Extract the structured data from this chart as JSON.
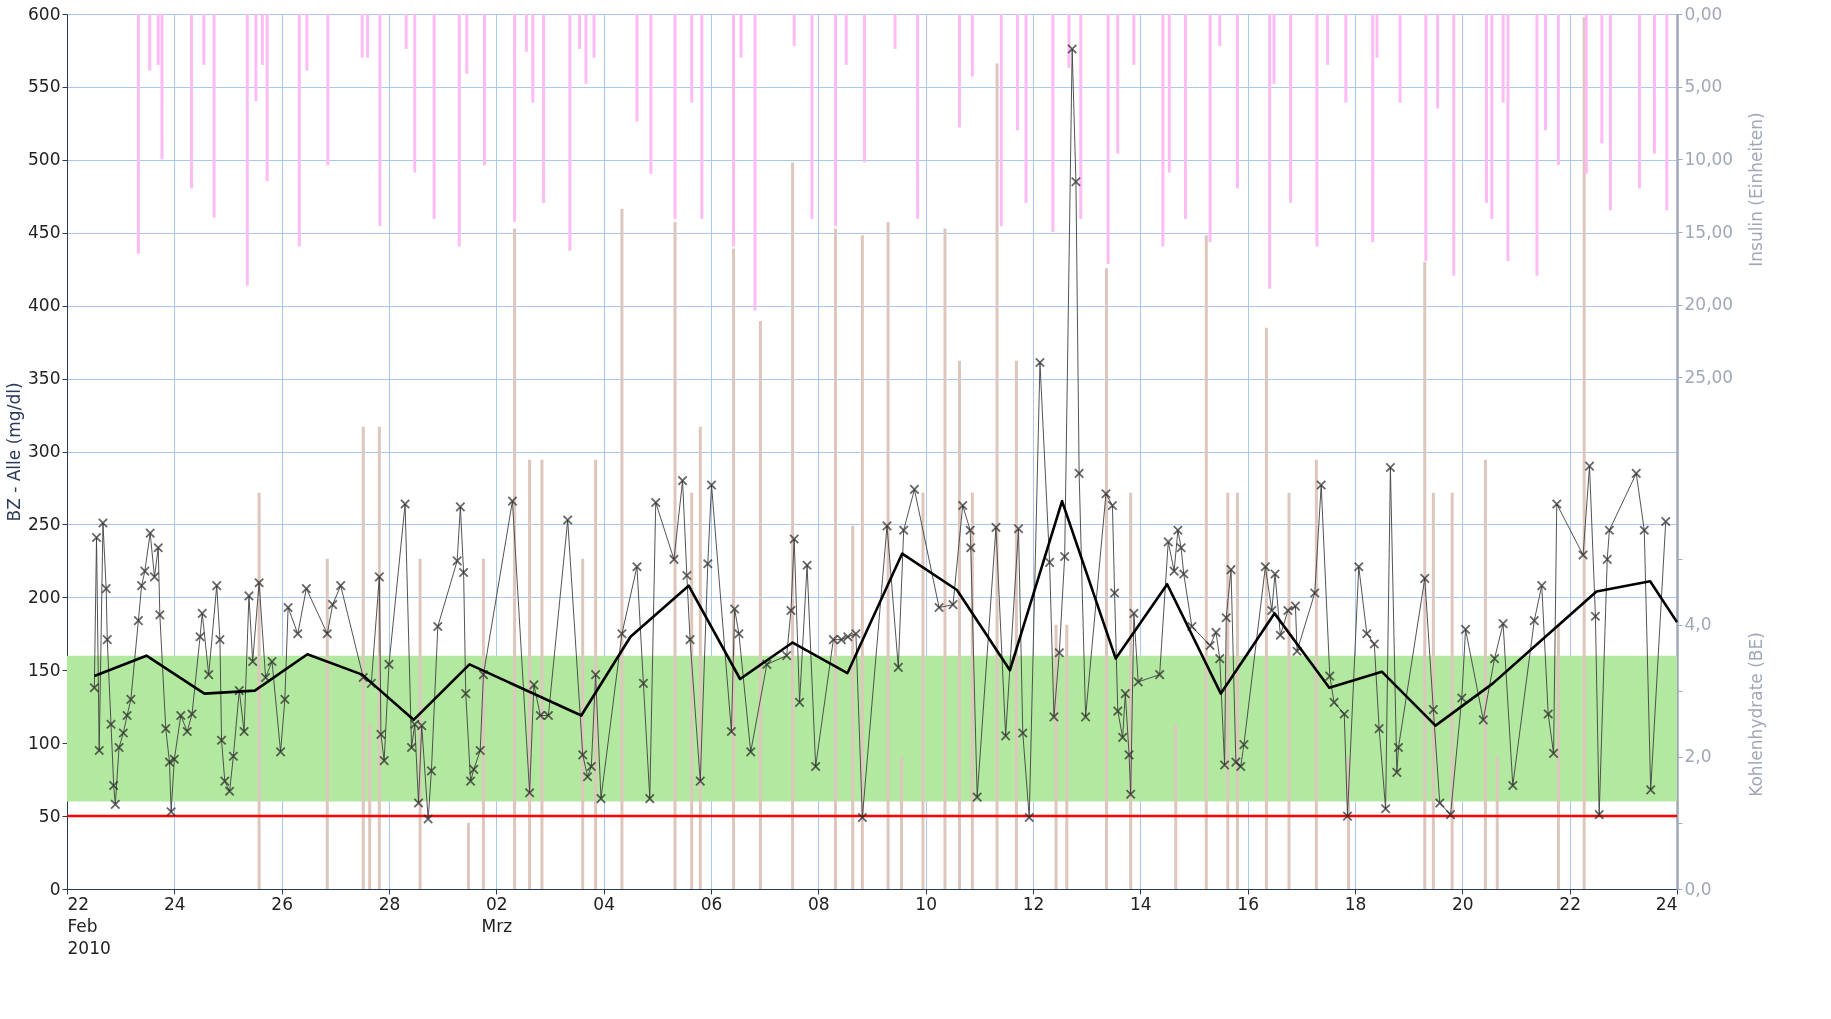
{
  "chart_data": {
    "type": "line",
    "ylabel": "BZ - Alle (mg/dl)",
    "y2label": "Insulin (Einheiten)",
    "y3label": "Kohlenhydrate (BE)",
    "xlim": [
      "2010-02-22",
      "2010-03-24"
    ],
    "xticks": [
      {
        "value": "2010-02-22",
        "label": "22\nFeb\n2010"
      },
      {
        "value": "2010-02-24",
        "label": "24"
      },
      {
        "value": "2010-02-26",
        "label": "26"
      },
      {
        "value": "2010-02-28",
        "label": "28"
      },
      {
        "value": "2010-03-02",
        "label": "02\nMrz"
      },
      {
        "value": "2010-03-04",
        "label": "04"
      },
      {
        "value": "2010-03-06",
        "label": "06"
      },
      {
        "value": "2010-03-08",
        "label": "08"
      },
      {
        "value": "2010-03-10",
        "label": "10"
      },
      {
        "value": "2010-03-12",
        "label": "12"
      },
      {
        "value": "2010-03-14",
        "label": "14"
      },
      {
        "value": "2010-03-16",
        "label": "16"
      },
      {
        "value": "2010-03-18",
        "label": "18"
      },
      {
        "value": "2010-03-20",
        "label": "20"
      },
      {
        "value": "2010-03-22",
        "label": "22"
      },
      {
        "value": "2010-03-24",
        "label": "24"
      }
    ],
    "ylim": [
      0,
      600
    ],
    "yticks": [
      0,
      50,
      100,
      150,
      200,
      250,
      300,
      350,
      400,
      450,
      500,
      550,
      600
    ],
    "y2lim": [
      60.2,
      0
    ],
    "y2ticks": [
      {
        "value": 0,
        "label": "0,00"
      },
      {
        "value": 5,
        "label": "5,00"
      },
      {
        "value": 10,
        "label": "10,00"
      },
      {
        "value": 15,
        "label": "15,00"
      },
      {
        "value": 20,
        "label": "20,00"
      },
      {
        "value": 25,
        "label": "25,00"
      }
    ],
    "y3lim": [
      0,
      13.25
    ],
    "y3ticks": [
      {
        "value": 0,
        "label": "0,0"
      },
      {
        "value": 1,
        "label": null
      },
      {
        "value": 2,
        "label": "2,0"
      },
      {
        "value": 3,
        "label": null
      },
      {
        "value": 4,
        "label": "4,0"
      },
      {
        "value": 5,
        "label": null
      }
    ],
    "grid": true,
    "bands": [
      {
        "axis": "y",
        "from": 60,
        "to": 160,
        "color": "#b3e8a0"
      }
    ],
    "ref_lines": [
      {
        "axis": "y",
        "value": 50,
        "color": "#ff0000",
        "line_style": "solid"
      }
    ],
    "series": [
      {
        "type": "bar",
        "axis": "y3",
        "color": "#ddc6bc",
        "x": [
          "2010-02-25T13:55",
          "2010-02-26T20:24",
          "2010-02-27T12:29",
          "2010-02-27T15:22",
          "2010-02-27T19:41",
          "2010-02-28T13:55",
          "2010-03-01T11:31",
          "2010-03-01T18:14",
          "2010-03-02T08:10",
          "2010-03-02T14:53",
          "2010-03-02T20:24",
          "2010-03-03T14:38",
          "2010-03-03T20:24",
          "2010-03-04T08:10",
          "2010-03-05T07:55",
          "2010-03-05T15:22",
          "2010-03-05T19:12",
          "2010-03-06T10:05",
          "2010-03-06T22:05",
          "2010-03-07T12:29",
          "2010-03-08T07:41",
          "2010-03-08T15:22",
          "2010-03-08T19:41",
          "2010-03-09T07:12",
          "2010-03-09T13:12",
          "2010-03-09T22:48",
          "2010-03-10T08:38",
          "2010-03-10T15:07",
          "2010-03-10T20:53",
          "2010-03-11T07:55",
          "2010-03-11T16:34",
          "2010-03-12T10:19",
          "2010-03-12T15:07",
          "2010-03-13T08:53",
          "2010-03-13T19:41",
          "2010-03-14T15:50",
          "2010-03-15T05:30",
          "2010-03-15T15:07",
          "2010-03-15T19:26",
          "2010-03-16T08:24",
          "2010-03-16T18:29",
          "2010-03-17T06:43",
          "2010-03-17T21:07",
          "2010-03-19T07:12",
          "2010-03-19T11:02",
          "2010-03-19T19:26",
          "2010-03-20T10:19",
          "2010-03-20T15:36",
          "2010-03-21T18:58",
          "2010-03-22T06:29"
        ],
        "values": [
          6.0,
          5.0,
          7.0,
          2.5,
          7.0,
          5.0,
          1.0,
          5.0,
          10.0,
          6.5,
          6.5,
          5.0,
          6.5,
          10.3,
          10.1,
          6.0,
          7.0,
          9.7,
          8.6,
          11.0,
          10.0,
          5.5,
          9.9,
          10.1,
          2.0,
          6.0,
          10.0,
          8.0,
          6.0,
          12.5,
          8.0,
          4.0,
          4.0,
          9.4,
          6.0,
          2.5,
          9.9,
          6.0,
          6.0,
          8.5,
          6.0,
          6.5,
          2.0,
          9.5,
          6.0,
          6.0,
          6.5,
          2.0,
          4.0,
          13.2
        ]
      },
      {
        "type": "bar",
        "axis": "y2",
        "color": "#ffbcf4",
        "x": [
          "2010-02-23T07:55",
          "2010-02-23T13:00",
          "2010-02-23T16:48",
          "2010-02-23T18:29",
          "2010-02-24T07:41",
          "2010-02-24T13:12",
          "2010-02-24T17:46",
          "2010-02-25T08:38",
          "2010-02-25T12:29",
          "2010-02-25T15:22",
          "2010-02-25T17:31",
          "2010-02-26T07:55",
          "2010-02-26T11:17",
          "2010-02-26T20:38",
          "2010-02-27T12:00",
          "2010-02-27T14:24",
          "2010-02-27T19:55",
          "2010-02-28T07:41",
          "2010-02-28T11:31",
          "2010-02-28T20:10",
          "2010-03-01T07:26",
          "2010-03-01T10:48",
          "2010-03-01T18:43",
          "2010-03-02T08:10",
          "2010-03-02T13:26",
          "2010-03-02T16:19",
          "2010-03-02T21:07",
          "2010-03-03T08:53",
          "2010-03-03T13:12",
          "2010-03-03T16:05",
          "2010-03-03T19:41",
          "2010-03-04T14:53",
          "2010-03-04T21:07",
          "2010-03-05T07:55",
          "2010-03-05T15:22",
          "2010-03-05T19:55",
          "2010-03-06T10:05",
          "2010-03-06T13:26",
          "2010-03-06T19:41",
          "2010-03-07T13:12",
          "2010-03-07T21:07",
          "2010-03-08T07:41",
          "2010-03-08T12:29",
          "2010-03-08T20:38",
          "2010-03-09T10:19",
          "2010-03-09T20:24",
          "2010-03-10T15:07",
          "2010-03-10T20:53",
          "2010-03-11T09:50",
          "2010-03-11T17:02",
          "2010-03-11T20:53",
          "2010-03-12T08:53",
          "2010-03-12T16:05",
          "2010-03-12T21:22",
          "2010-03-13T09:36",
          "2010-03-13T13:55",
          "2010-03-13T21:07",
          "2010-03-14T10:05",
          "2010-03-14T12:58",
          "2010-03-14T20:10",
          "2010-03-15T07:12",
          "2010-03-15T11:31",
          "2010-03-15T19:26",
          "2010-03-16T09:50",
          "2010-03-16T11:46",
          "2010-03-16T19:12",
          "2010-03-17T06:58",
          "2010-03-17T11:46",
          "2010-03-17T19:55",
          "2010-03-18T07:55",
          "2010-03-18T09:50",
          "2010-03-18T20:10",
          "2010-03-19T07:41",
          "2010-03-19T12:58",
          "2010-03-19T20:10",
          "2010-03-20T10:48",
          "2010-03-20T13:12",
          "2010-03-20T18:14",
          "2010-03-20T20:24",
          "2010-03-21T09:22",
          "2010-03-21T13:12",
          "2010-03-21T18:58",
          "2010-03-22T07:26",
          "2010-03-22T14:24",
          "2010-03-22T18:14",
          "2010-03-23T07:12",
          "2010-03-23T13:55",
          "2010-03-23T19:26"
        ],
        "values": [
          16.5,
          3.9,
          3.5,
          10,
          12,
          3.5,
          14,
          18.7,
          6,
          3.5,
          11.5,
          16,
          3.9,
          10.4,
          3,
          3,
          14.6,
          2.4,
          10.9,
          14.1,
          16,
          4.1,
          10.4,
          14.3,
          2.6,
          6.1,
          13,
          16.3,
          2.4,
          4.8,
          3,
          7.4,
          11,
          14.1,
          6.1,
          14.1,
          16,
          3,
          20.4,
          2.2,
          14.1,
          14.6,
          3.5,
          10.2,
          2.4,
          14.1,
          7.8,
          4.3,
          14.6,
          8,
          13,
          15,
          3.7,
          14.1,
          17.2,
          9.6,
          3.5,
          16,
          10.9,
          14.1,
          15.7,
          2.2,
          12,
          18.9,
          4.8,
          13,
          16,
          3.5,
          6.1,
          15.7,
          3,
          6.1,
          17,
          6.5,
          18,
          13,
          14.1,
          6.1,
          17,
          18,
          8,
          10.4,
          11,
          8.9,
          13.5,
          12,
          9.6,
          13.5
        ]
      },
      {
        "color": "#404040",
        "marker": "cross",
        "line_style": "solid",
        "x": [
          "2010-02-22T12:14",
          "2010-02-22T13:12",
          "2010-02-22T14:24",
          "2010-02-22T16:05",
          "2010-02-22T17:31",
          "2010-02-22T18:00",
          "2010-02-22T19:41",
          "2010-02-22T20:53",
          "2010-02-22T21:36",
          "2010-02-22T23:17",
          "2010-02-23T01:12",
          "2010-02-23T02:53",
          "2010-02-23T04:34",
          "2010-02-23T07:55",
          "2010-02-23T09:22",
          "2010-02-23T10:48",
          "2010-02-23T13:12",
          "2010-02-23T15:07",
          "2010-02-23T16:48",
          "2010-02-23T17:31",
          "2010-02-23T20:10",
          "2010-02-23T21:50",
          "2010-02-23T22:34",
          "2010-02-24T00:00",
          "2010-02-24T02:53",
          "2010-02-24T05:46",
          "2010-02-24T07:55",
          "2010-02-24T11:31",
          "2010-02-24T12:29",
          "2010-02-24T15:22",
          "2010-02-24T18:58",
          "2010-02-24T20:24",
          "2010-02-24T21:07",
          "2010-02-24T22:34",
          "2010-02-25T00:43",
          "2010-02-25T02:24",
          "2010-02-25T05:02",
          "2010-02-25T07:12",
          "2010-02-25T09:22",
          "2010-02-25T11:02",
          "2010-02-25T13:55",
          "2010-02-25T16:48",
          "2010-02-25T19:41",
          "2010-02-25T23:31",
          "2010-02-26T01:26",
          "2010-02-26T02:53",
          "2010-02-26T07:12",
          "2010-02-26T11:02",
          "2010-02-26T20:24",
          "2010-02-26T22:48",
          "2010-02-27T02:24",
          "2010-02-27T12:29",
          "2010-02-27T16:05",
          "2010-02-27T19:41",
          "2010-02-27T20:24",
          "2010-02-27T21:50",
          "2010-02-28T00:00",
          "2010-02-28T07:12",
          "2010-02-28T10:05",
          "2010-02-28T11:31",
          "2010-02-28T13:12",
          "2010-02-28T14:38",
          "2010-02-28T17:31",
          "2010-02-28T18:58",
          "2010-02-28T21:50",
          "2010-03-01T06:29",
          "2010-03-01T07:55",
          "2010-03-01T09:22",
          "2010-03-01T10:19",
          "2010-03-01T12:29",
          "2010-03-01T13:55",
          "2010-03-01T16:48",
          "2010-03-01T18:14",
          "2010-03-02T07:12",
          "2010-03-02T14:53",
          "2010-03-02T16:48",
          "2010-03-02T19:41",
          "2010-03-02T23:17",
          "2010-03-03T07:55",
          "2010-03-03T14:38",
          "2010-03-03T16:48",
          "2010-03-03T18:29",
          "2010-03-03T20:24",
          "2010-03-03T22:48",
          "2010-03-04T08:10",
          "2010-03-04T14:53",
          "2010-03-04T17:46",
          "2010-03-04T20:38",
          "2010-03-04T23:17",
          "2010-03-05T07:26",
          "2010-03-05T11:17",
          "2010-03-05T13:12",
          "2010-03-05T14:38",
          "2010-03-05T19:12",
          "2010-03-05T22:34",
          "2010-03-06T00:14",
          "2010-03-06T09:07",
          "2010-03-06T10:34",
          "2010-03-06T12:29",
          "2010-03-06T17:46",
          "2010-03-07T00:58",
          "2010-03-07T09:50",
          "2010-03-07T11:46",
          "2010-03-07T13:12",
          "2010-03-07T15:36",
          "2010-03-07T18:58",
          "2010-03-07T22:48",
          "2010-03-08T06:43",
          "2010-03-08T10:19",
          "2010-03-08T13:12",
          "2010-03-08T16:48",
          "2010-03-08T19:41",
          "2010-03-09T06:43",
          "2010-03-09T11:46",
          "2010-03-09T14:10",
          "2010-03-09T18:58",
          "2010-03-10T06:00",
          "2010-03-10T12:14",
          "2010-03-10T16:34",
          "2010-03-10T19:55",
          "2010-03-10T20:10",
          "2010-03-10T23:02",
          "2010-03-11T07:26",
          "2010-03-11T11:46",
          "2010-03-11T17:31",
          "2010-03-11T19:26",
          "2010-03-11T22:19",
          "2010-03-12T03:07",
          "2010-03-12T07:26",
          "2010-03-12T09:22",
          "2010-03-12T11:46",
          "2010-03-12T14:10",
          "2010-03-12T17:31",
          "2010-03-12T19:12",
          "2010-03-12T20:38",
          "2010-03-12T23:31",
          "2010-03-13T08:38",
          "2010-03-13T11:31",
          "2010-03-13T12:29",
          "2010-03-13T13:55",
          "2010-03-13T16:05",
          "2010-03-13T17:17",
          "2010-03-13T18:58",
          "2010-03-13T19:41",
          "2010-03-13T21:07",
          "2010-03-13T23:02",
          "2010-03-14T08:38",
          "2010-03-14T12:29",
          "2010-03-14T15:07",
          "2010-03-14T16:48",
          "2010-03-14T18:14",
          "2010-03-14T19:26",
          "2010-03-14T23:02",
          "2010-03-15T07:12",
          "2010-03-15T09:50",
          "2010-03-15T11:31",
          "2010-03-15T13:41",
          "2010-03-15T14:24",
          "2010-03-15T16:34",
          "2010-03-15T18:43",
          "2010-03-15T20:53",
          "2010-03-15T22:19",
          "2010-03-16T07:55",
          "2010-03-16T10:48",
          "2010-03-16T12:14",
          "2010-03-16T14:38",
          "2010-03-16T18:00",
          "2010-03-16T21:22",
          "2010-03-16T22:05",
          "2010-03-17T06:00",
          "2010-03-17T08:53",
          "2010-03-17T12:43",
          "2010-03-17T14:38",
          "2010-03-17T19:12",
          "2010-03-17T20:38",
          "2010-03-18T01:41",
          "2010-03-18T05:17",
          "2010-03-18T08:38",
          "2010-03-18T10:48",
          "2010-03-18T13:41",
          "2010-03-18T15:50",
          "2010-03-18T18:43",
          "2010-03-18T19:26",
          "2010-03-19T07:12",
          "2010-03-19T11:02",
          "2010-03-19T13:55",
          "2010-03-19T18:43",
          "2010-03-19T23:46",
          "2010-03-20T01:26",
          "2010-03-20T09:22",
          "2010-03-20T14:24",
          "2010-03-20T18:14",
          "2010-03-20T22:34",
          "2010-03-21T08:10",
          "2010-03-21T11:31",
          "2010-03-21T14:24",
          "2010-03-21T16:48",
          "2010-03-21T18:14",
          "2010-03-22T06:00",
          "2010-03-22T08:53",
          "2010-03-22T11:31",
          "2010-03-22T13:12",
          "2010-03-22T16:48",
          "2010-03-22T17:46",
          "2010-03-23T05:46",
          "2010-03-23T09:22",
          "2010-03-23T12:14",
          "2010-03-23T18:58"
        ],
        "values": [
          138,
          241,
          95,
          251,
          206,
          171,
          113,
          71,
          58,
          97,
          107,
          119,
          130,
          184,
          208,
          218,
          244,
          214,
          234,
          188,
          110,
          87,
          53,
          89,
          119,
          108,
          120,
          173,
          189,
          147,
          208,
          171,
          102,
          74,
          67,
          91,
          136,
          108,
          201,
          156,
          210,
          145,
          156,
          94,
          130,
          193,
          175,
          206,
          175,
          195,
          208,
          145,
          141,
          214,
          106,
          88,
          154,
          264,
          97,
          113,
          59,
          112,
          48,
          81,
          180,
          225,
          262,
          217,
          134,
          74,
          82,
          95,
          147,
          266,
          66,
          140,
          119,
          119,
          253,
          92,
          77,
          84,
          147,
          62,
          175,
          221,
          141,
          62,
          265,
          226,
          280,
          215,
          171,
          74,
          223,
          277,
          108,
          192,
          175,
          94,
          154,
          160,
          191,
          240,
          128,
          222,
          84,
          171,
          171,
          173,
          175,
          49,
          249,
          152,
          246,
          274,
          193,
          195,
          263,
          246,
          234,
          63,
          248,
          105,
          247,
          107,
          49,
          361,
          224,
          118,
          162,
          228,
          576,
          485,
          285,
          118,
          271,
          263,
          203,
          122,
          104,
          134,
          92,
          65,
          189,
          142,
          147,
          238,
          218,
          246,
          234,
          216,
          180,
          167,
          176,
          158,
          85,
          186,
          219,
          87,
          84,
          99,
          221,
          191,
          216,
          174,
          191,
          194,
          163,
          203,
          277,
          146,
          128,
          120,
          50,
          221,
          175,
          168,
          110,
          55,
          289,
          80,
          97,
          213,
          123,
          59,
          51,
          131,
          178,
          116,
          158,
          182,
          71,
          184,
          208,
          120,
          93,
          264,
          229,
          290,
          187,
          51,
          226,
          246,
          285,
          246,
          68,
          252
        ]
      },
      {
        "color": "#000000",
        "marker": "none",
        "line_style": "solid",
        "x": [
          "2010-02-22T12:14",
          "2010-02-23T11:31",
          "2010-02-24T13:26",
          "2010-02-25T12:00",
          "2010-02-26T11:31",
          "2010-02-27T12:00",
          "2010-02-28T11:00",
          "2010-03-01T12:00",
          "2010-03-03T14:00",
          "2010-03-04T12:00",
          "2010-03-05T14:00",
          "2010-03-06T13:00",
          "2010-03-07T12:30",
          "2010-03-08T13:00",
          "2010-03-09T13:30",
          "2010-03-10T14:00",
          "2010-03-11T13:40",
          "2010-03-12T13:00",
          "2010-03-13T13:00",
          "2010-03-14T12:00",
          "2010-03-15T12:00",
          "2010-03-16T12:00",
          "2010-03-17T12:30",
          "2010-03-18T12:00",
          "2010-03-19T12:00",
          "2010-03-20T13:40",
          "2010-03-22T12:00",
          "2010-03-23T12:00",
          "2010-03-24T00:00"
        ],
        "values": [
          146,
          160,
          134,
          136,
          161,
          147,
          116,
          154,
          119,
          173,
          208,
          144,
          169,
          148,
          230,
          205,
          150,
          266,
          158,
          209,
          134,
          189,
          138,
          149,
          112,
          141,
          204,
          211,
          183
        ]
      }
    ]
  }
}
